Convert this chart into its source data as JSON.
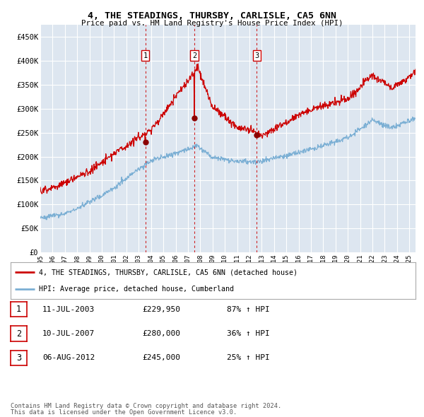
{
  "title": "4, THE STEADINGS, THURSBY, CARLISLE, CA5 6NN",
  "subtitle": "Price paid vs. HM Land Registry's House Price Index (HPI)",
  "bg_color": "#dde6f0",
  "red_label": "4, THE STEADINGS, THURSBY, CARLISLE, CA5 6NN (detached house)",
  "blue_label": "HPI: Average price, detached house, Cumberland",
  "footer1": "Contains HM Land Registry data © Crown copyright and database right 2024.",
  "footer2": "This data is licensed under the Open Government Licence v3.0.",
  "sales": [
    {
      "label": "1",
      "date": "11-JUL-2003",
      "price": "229,950",
      "pct": "87%",
      "dir": "↑"
    },
    {
      "label": "2",
      "date": "10-JUL-2007",
      "price": "280,000",
      "pct": "36%",
      "dir": "↑"
    },
    {
      "label": "3",
      "date": "06-AUG-2012",
      "price": "245,000",
      "pct": "25%",
      "dir": "↑"
    }
  ],
  "sale_years": [
    2003.53,
    2007.53,
    2012.6
  ],
  "sale_prices": [
    229950,
    280000,
    245000
  ],
  "ylim": [
    0,
    475000
  ],
  "yticks": [
    0,
    50000,
    100000,
    150000,
    200000,
    250000,
    300000,
    350000,
    400000,
    450000
  ],
  "ytick_labels": [
    "£0",
    "£50K",
    "£100K",
    "£150K",
    "£200K",
    "£250K",
    "£300K",
    "£350K",
    "£400K",
    "£450K"
  ],
  "x_start": 1995.0,
  "x_end": 2025.5,
  "xticks": [
    1995,
    1996,
    1997,
    1998,
    1999,
    2000,
    2001,
    2002,
    2003,
    2004,
    2005,
    2006,
    2007,
    2008,
    2009,
    2010,
    2011,
    2012,
    2013,
    2014,
    2015,
    2016,
    2017,
    2018,
    2019,
    2020,
    2021,
    2022,
    2023,
    2024,
    2025
  ]
}
